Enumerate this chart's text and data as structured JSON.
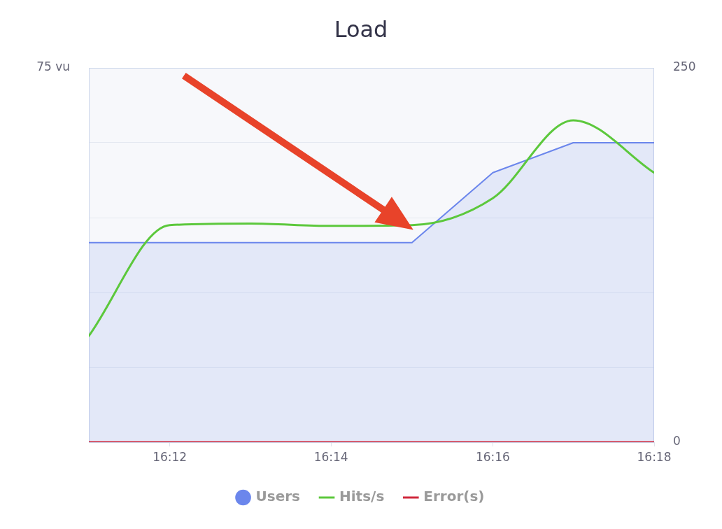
{
  "chart_data": {
    "type": "line",
    "title": "Load",
    "x": [
      16.1833,
      16.2,
      16.2167,
      16.2333,
      16.25,
      16.2667,
      16.2833,
      16.3
    ],
    "xlim": [
      16.1833,
      16.3
    ],
    "xticks": [
      {
        "value": 16.2,
        "label": "16:12"
      },
      {
        "value": 16.2333,
        "label": "16:14"
      },
      {
        "value": 16.2667,
        "label": "16:16"
      },
      {
        "value": 16.3,
        "label": "16:18"
      }
    ],
    "ylim": [
      0,
      75
    ],
    "yticks": [
      {
        "value": 0,
        "label": null
      },
      {
        "value": 15,
        "label": null
      },
      {
        "value": 30,
        "label": null
      },
      {
        "value": 45,
        "label": null
      },
      {
        "value": 60,
        "label": null
      },
      {
        "value": 75,
        "label": "75 vu"
      }
    ],
    "y2lim": [
      0,
      250
    ],
    "y2ticks": [
      0,
      250
    ],
    "series": [
      {
        "name": "Users",
        "type": "area",
        "color": "#6b86ec",
        "values": [
          40,
          40,
          40,
          40,
          40,
          54,
          60,
          60
        ]
      },
      {
        "name": "Hits/s",
        "axis": "y2",
        "color": "#5cc83c",
        "values": [
          71,
          145,
          146,
          144.5,
          145,
          163,
          215,
          180
        ]
      },
      {
        "name": "Error(s)",
        "axis": "y2",
        "color": "#d0283c",
        "values": [
          0,
          0,
          0,
          0,
          0,
          0,
          0,
          0
        ]
      }
    ],
    "grid": "y",
    "legend": "bottom",
    "marker": "none"
  }
}
